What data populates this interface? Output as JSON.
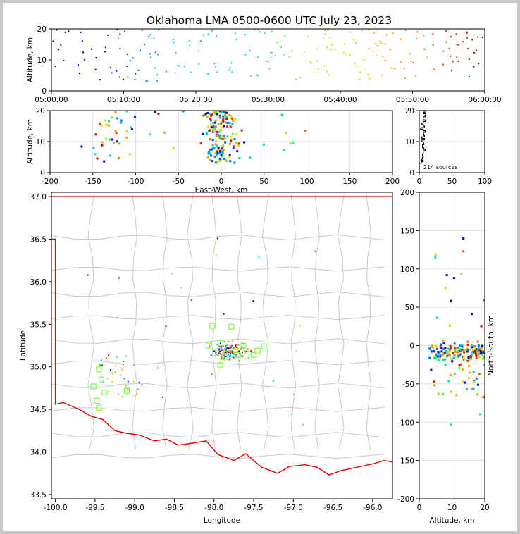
{
  "title": "Oklahoma LMA 0500-0600 UTC July 23, 2023",
  "chart_data": [
    {
      "type": "scatter",
      "panel": "altitude-time",
      "xlabel": "",
      "ylabel": "Altitude, km",
      "x_ticks": [
        "05:00:00",
        "05:10:00",
        "05:20:00",
        "05:30:00",
        "05:40:00",
        "05:50:00",
        "06:00:00"
      ],
      "xlim": [
        "05:00:00",
        "06:00:00"
      ],
      "ylim": [
        0,
        20
      ],
      "y_ticks": [
        0,
        10,
        20
      ],
      "color_by": "time",
      "grid": false
    },
    {
      "type": "scatter",
      "panel": "altitude-east-west",
      "xlabel": "East-West, km",
      "ylabel": "Altitude, km",
      "xlim": [
        -200,
        200
      ],
      "ylim": [
        0,
        20
      ],
      "x_ticks": [
        -200,
        -150,
        -100,
        -50,
        0,
        50,
        100,
        150,
        200
      ],
      "y_ticks": [
        0,
        10,
        20
      ],
      "grid": true
    },
    {
      "type": "bar",
      "panel": "altitude-histogram",
      "xlim": [
        0,
        100
      ],
      "ylim": [
        0,
        20
      ],
      "x_ticks": [
        0,
        50,
        100
      ],
      "y_ticks": [
        0,
        10,
        20
      ],
      "annotation": "214 sources"
    },
    {
      "type": "scatter",
      "panel": "plan-view-map",
      "xlabel": "Longitude",
      "ylabel": "Latitude",
      "xlim": [
        -100.05,
        -95.75
      ],
      "ylim": [
        33.45,
        37.05
      ],
      "x_ticks": [
        "-100.0",
        "-99.5",
        "-99.0",
        "-98.5",
        "-98.0",
        "-97.5",
        "-97.0",
        "-96.5",
        "-96.0"
      ],
      "y_ticks": [
        "33.5",
        "34.0",
        "34.5",
        "35.0",
        "35.5",
        "36.0",
        "36.5",
        "37.0"
      ],
      "stations": [
        {
          "lon": -99.45,
          "lat": 34.97
        },
        {
          "lon": -99.42,
          "lat": 34.85
        },
        {
          "lon": -99.38,
          "lat": 34.7
        },
        {
          "lon": -99.52,
          "lat": 34.77
        },
        {
          "lon": -99.48,
          "lat": 34.6
        },
        {
          "lon": -99.45,
          "lat": 34.52
        },
        {
          "lon": -99.1,
          "lat": 34.72
        },
        {
          "lon": -98.02,
          "lat": 35.48
        },
        {
          "lon": -98.07,
          "lat": 35.25
        },
        {
          "lon": -97.92,
          "lat": 35.28
        },
        {
          "lon": -97.78,
          "lat": 35.47
        },
        {
          "lon": -97.7,
          "lat": 35.14
        },
        {
          "lon": -97.63,
          "lat": 35.25
        },
        {
          "lon": -97.5,
          "lat": 35.14
        },
        {
          "lon": -97.45,
          "lat": 35.19
        },
        {
          "lon": -97.37,
          "lat": 35.24
        },
        {
          "lon": -97.92,
          "lat": 35.02
        }
      ]
    },
    {
      "type": "scatter",
      "panel": "north-south-altitude",
      "xlabel": "Altitude, km",
      "ylabel": "North-South, km",
      "xlim": [
        0,
        20
      ],
      "ylim": [
        -200,
        200
      ],
      "x_ticks": [
        0,
        10,
        20
      ],
      "y_ticks": [
        -200,
        -150,
        -100,
        -50,
        0,
        50,
        100,
        150,
        200
      ],
      "grid": true
    }
  ]
}
